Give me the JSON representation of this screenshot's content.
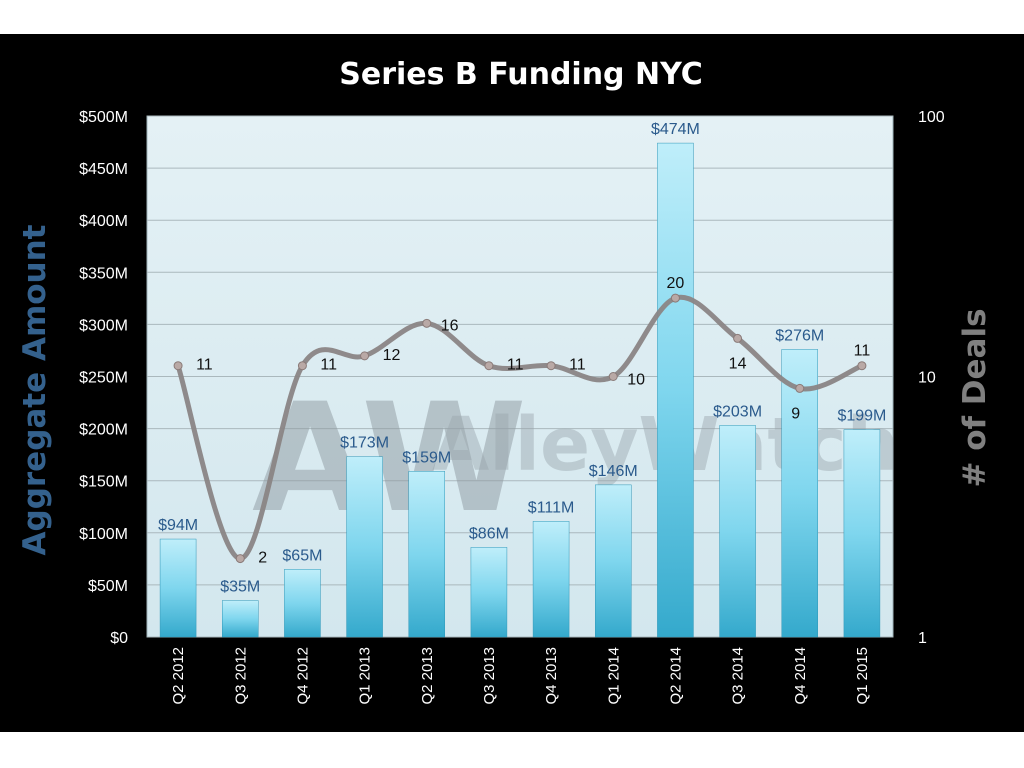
{
  "chart_data": {
    "type": "bar",
    "title": "Series B  Funding NYC",
    "ylabel": "Aggregate  Amount",
    "y2label": "# of Deals",
    "categories": [
      "Q2 2012",
      "Q3 2012",
      "Q4 2012",
      "Q1 2013",
      "Q2 2013",
      "Q3 2013",
      "Q4 2013",
      "Q1 2014",
      "Q2 2014",
      "Q3 2014",
      "Q4 2014",
      "Q1 2015"
    ],
    "series": [
      {
        "type": "bar",
        "axis": "left",
        "values": [
          94,
          35,
          65,
          173,
          159,
          86,
          111,
          146,
          474,
          203,
          276,
          199
        ],
        "labels": [
          "$94M",
          "$35M",
          "$65M",
          "$173M",
          "$159M",
          "$86M",
          "$111M",
          "$146M",
          "$474M",
          "$203M",
          "$276M",
          "$199M"
        ],
        "color": "#5bc8e6"
      },
      {
        "type": "line",
        "axis": "right",
        "values": [
          11,
          2,
          11,
          12,
          16,
          11,
          11,
          10,
          20,
          14,
          9,
          11
        ],
        "color": "#8a8585"
      }
    ],
    "ylim": [
      0,
      500
    ],
    "y_ticks": [
      "$0",
      "$50M",
      "$100M",
      "$150M",
      "$200M",
      "$250M",
      "$300M",
      "$350M",
      "$400M",
      "$450M",
      "$500M"
    ],
    "y2lim": [
      1,
      100
    ],
    "y2_scale": "log",
    "y2_ticks": [
      "1",
      "10",
      "100"
    ],
    "grid": true,
    "watermark": "AlleyWatch",
    "watermark_logo": "AW"
  },
  "colors": {
    "background": "#000000",
    "plot_area": "#dfeef3",
    "bar": "#5bc8e6",
    "line": "#8a8585",
    "left_axis_label": "#34618d",
    "right_axis_label": "#808080"
  }
}
